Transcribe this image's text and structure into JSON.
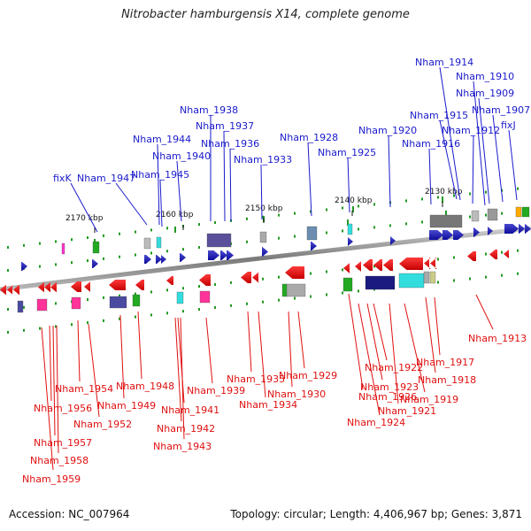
{
  "title": "Nitrobacter hamburgensis X14, complete genome",
  "footer": {
    "accession": "Accession: NC_007964",
    "summary": "Topology: circular; Length: 4,406,967 bp; Genes: 3,871"
  },
  "colors": {
    "plus_strand": "#1a1acc",
    "minus_strand": "#e01010",
    "backbone": "#888888",
    "tick": "#229922"
  },
  "kbp_labels": [
    "2170 kbp",
    "2160 kbp",
    "2150 kbp",
    "2140 kbp",
    "2130 kbp"
  ],
  "plus_labels": [
    "fixK",
    "Nham_1947",
    "Nham_1945",
    "Nham_1944",
    "Nham_1940",
    "Nham_1938",
    "Nham_1937",
    "Nham_1936",
    "Nham_1933",
    "Nham_1928",
    "Nham_1925",
    "Nham_1920",
    "Nham_1916",
    "Nham_1915",
    "Nham_1914",
    "Nham_1912",
    "Nham_1910",
    "Nham_1909",
    "Nham_1907",
    "fixJ"
  ],
  "minus_labels": [
    "Nham_1913",
    "Nham_1954",
    "Nham_1956",
    "Nham_1957",
    "Nham_1958",
    "Nham_1959",
    "Nham_1952",
    "Nham_1949",
    "Nham_1948",
    "Nham_1941",
    "Nham_1942",
    "Nham_1943",
    "Nham_1939",
    "Nham_1935",
    "Nham_1934",
    "Nham_1930",
    "Nham_1929",
    "Nham_1926",
    "Nham_1924",
    "Nham_1923",
    "Nham_1922",
    "Nham_1921",
    "Nham_1919",
    "Nham_1918",
    "Nham_1917"
  ]
}
